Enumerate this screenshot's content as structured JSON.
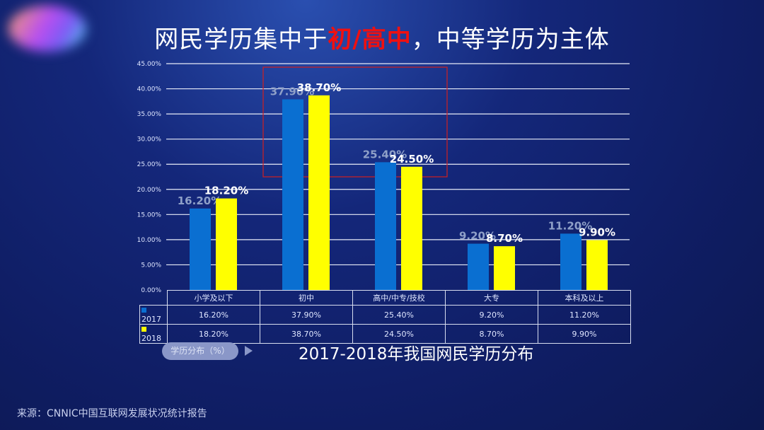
{
  "title": {
    "part1": "网民学历集中于",
    "highlight": "初/高中",
    "part2": "，中等学历为主体"
  },
  "chart_data": {
    "type": "bar",
    "title": "2017-2018年我国网民学历分布",
    "categories": [
      "小学及以下",
      "初中",
      "高中/中专/技校",
      "大专",
      "本科及以上"
    ],
    "series": [
      {
        "name": "2017",
        "values": [
          16.2,
          37.9,
          25.4,
          9.2,
          11.2
        ],
        "labels": [
          "16.20%",
          "37.90%",
          "25.40%",
          "9.20%",
          "11.20%"
        ],
        "color": "#0a6fd1"
      },
      {
        "name": "2018",
        "values": [
          18.2,
          38.7,
          24.5,
          8.7,
          9.9
        ],
        "labels": [
          "18.20%",
          "38.70%",
          "24.50%",
          "8.70%",
          "9.90%"
        ],
        "color": "#ffff00"
      }
    ],
    "yticks": [
      "0.00%",
      "5.00%",
      "10.00%",
      "15.00%",
      "20.00%",
      "25.00%",
      "30.00%",
      "35.00%",
      "40.00%",
      "45.00%"
    ],
    "ylim": [
      0,
      45
    ],
    "grid": true,
    "highlight_box_categories": [
      "初中",
      "高中/中专/技校"
    ]
  },
  "pill_label": "学历分布（%）",
  "source": "来源：CNNIC中国互联网发展状况统计报告"
}
